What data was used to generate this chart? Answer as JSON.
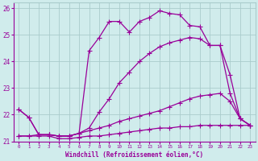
{
  "background_color": "#d0ecec",
  "grid_color": "#aacccc",
  "line_color": "#990099",
  "marker": "+",
  "markersize": 4,
  "linewidth": 0.9,
  "markeredgewidth": 0.8,
  "xlabel": "Windchill (Refroidissement éolien,°C)",
  "xlabel_color": "#990099",
  "tick_color": "#990099",
  "xlim": [
    -0.5,
    23.5
  ],
  "ylim": [
    21.0,
    26.2
  ],
  "yticks": [
    21,
    22,
    23,
    24,
    25,
    26
  ],
  "xticks": [
    0,
    1,
    2,
    3,
    4,
    5,
    6,
    7,
    8,
    9,
    10,
    11,
    12,
    13,
    14,
    15,
    16,
    17,
    18,
    19,
    20,
    21,
    22,
    23
  ],
  "series": [
    {
      "x": [
        0,
        1,
        2,
        3,
        4,
        5,
        6,
        7,
        8,
        9,
        10,
        11,
        12,
        13,
        14,
        15,
        16,
        17,
        18,
        19,
        20,
        21,
        22,
        23
      ],
      "y": [
        21.2,
        21.2,
        21.2,
        21.2,
        21.1,
        21.1,
        21.15,
        21.2,
        21.2,
        21.25,
        21.3,
        21.35,
        21.4,
        21.45,
        21.5,
        21.5,
        21.55,
        21.55,
        21.6,
        21.6,
        21.6,
        21.6,
        21.6,
        21.6
      ]
    },
    {
      "x": [
        0,
        1,
        2,
        3,
        4,
        5,
        6,
        7,
        8,
        9,
        10,
        11,
        12,
        13,
        14,
        15,
        16,
        17,
        18,
        19,
        20,
        21,
        22,
        23
      ],
      "y": [
        21.2,
        21.2,
        21.25,
        21.25,
        21.2,
        21.2,
        21.3,
        21.4,
        21.5,
        21.6,
        21.75,
        21.85,
        21.95,
        22.05,
        22.15,
        22.3,
        22.45,
        22.6,
        22.7,
        22.75,
        22.8,
        22.5,
        21.85,
        21.6
      ]
    },
    {
      "x": [
        0,
        1,
        2,
        3,
        4,
        5,
        6,
        7,
        8,
        9,
        10,
        11,
        12,
        13,
        14,
        15,
        16,
        17,
        18,
        19,
        20,
        21,
        22,
        23
      ],
      "y": [
        22.2,
        21.9,
        21.25,
        21.25,
        21.2,
        21.2,
        21.3,
        21.5,
        22.1,
        22.6,
        23.2,
        23.6,
        24.0,
        24.3,
        24.55,
        24.7,
        24.8,
        24.9,
        24.85,
        24.6,
        24.6,
        23.5,
        21.85,
        21.6
      ]
    },
    {
      "x": [
        0,
        1,
        2,
        3,
        4,
        5,
        6,
        7,
        8,
        9,
        10,
        11,
        12,
        13,
        14,
        15,
        16,
        17,
        18,
        19,
        20,
        21,
        22,
        23
      ],
      "y": [
        22.2,
        21.9,
        21.25,
        21.25,
        21.2,
        21.2,
        21.3,
        24.4,
        24.9,
        25.5,
        25.5,
        25.1,
        25.5,
        25.65,
        25.9,
        25.8,
        25.75,
        25.35,
        25.3,
        24.6,
        24.6,
        22.8,
        21.85,
        21.6
      ]
    }
  ]
}
